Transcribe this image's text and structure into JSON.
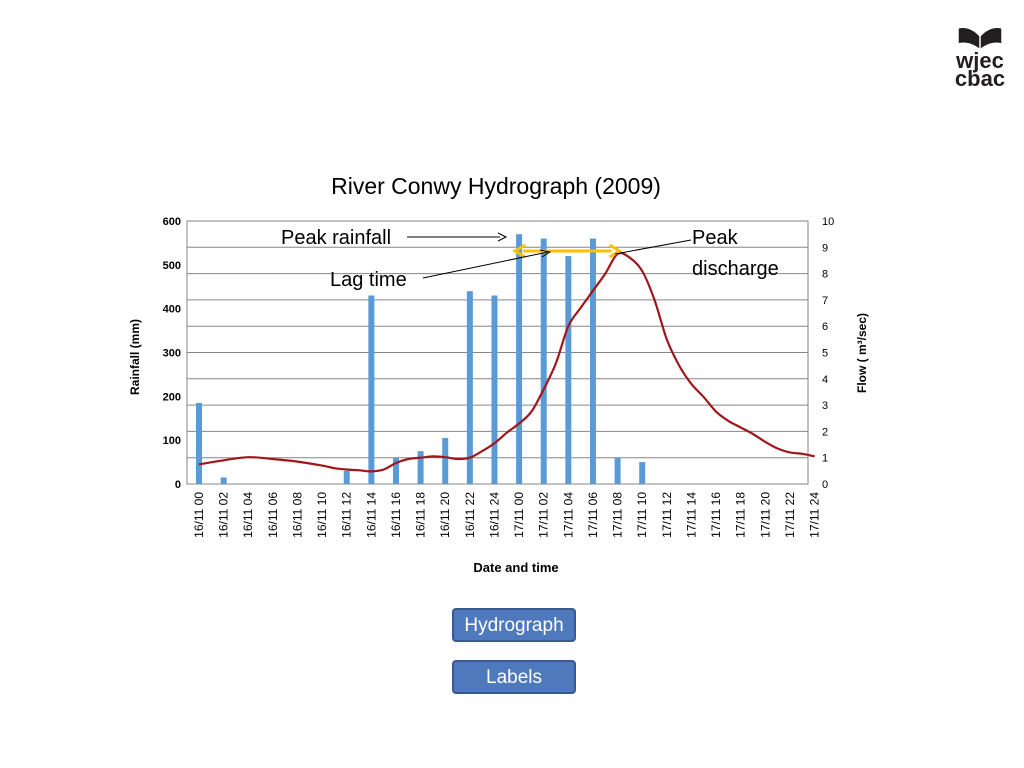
{
  "logo": {
    "line1": "wjec",
    "line2": "cbac"
  },
  "buttons": {
    "hydrograph": "Hydrograph",
    "labels": "Labels"
  },
  "colors": {
    "bars": "#5b9bd5",
    "flow_line": "#a0161b",
    "lag_arrow": "#ffc000",
    "button": "#4f79bd"
  },
  "chart_data": {
    "type": "bar+line",
    "title": "River Conwy Hydrograph (2009)",
    "xlabel": "Date and time",
    "ylabel": "Rainfall (mm)",
    "y2label": "Flow ( m³/sec)",
    "ylim": [
      0,
      600
    ],
    "y_ticks": [
      0,
      100,
      200,
      300,
      400,
      500,
      600
    ],
    "y2lim": [
      0,
      10
    ],
    "y2_ticks": [
      0,
      1,
      2,
      3,
      4,
      5,
      6,
      7,
      8,
      9,
      10
    ],
    "grid": "horizontal, on flow axis",
    "categories": [
      "16/11 00",
      "16/11 02",
      "16/11 04",
      "16/11 06",
      "16/11 08",
      "16/11 10",
      "16/11 12",
      "16/11 14",
      "16/11 16",
      "16/11 18",
      "16/11 20",
      "16/11 22",
      "16/11 24",
      "17/11 00",
      "17/11 02",
      "17/11 04",
      "17/11 06",
      "17/11 08",
      "17/11 10",
      "17/11 12",
      "17/11 14",
      "17/11 16",
      "17/11 18",
      "17/11 20",
      "17/11 22",
      "17/11 24"
    ],
    "series": [
      {
        "name": "Rainfall",
        "kind": "bar",
        "axis": "left",
        "x": [
          0,
          1,
          6,
          7,
          8,
          9,
          10,
          11,
          12,
          13,
          14,
          15,
          16,
          17,
          18
        ],
        "values": [
          185,
          15,
          30,
          430,
          60,
          75,
          105,
          440,
          430,
          570,
          560,
          520,
          560,
          60,
          50
        ]
      },
      {
        "name": "Flow",
        "kind": "line",
        "axis": "right",
        "x": [
          0,
          1,
          2,
          3,
          4,
          5,
          5.5,
          6,
          6.5,
          7,
          7.5,
          8,
          8.5,
          9,
          9.5,
          10,
          10.5,
          11,
          11.5,
          12,
          12.5,
          13,
          13.5,
          14,
          14.5,
          15,
          15.5,
          16,
          16.5,
          17,
          17.5,
          18,
          18.5,
          19,
          19.5,
          20,
          20.5,
          21,
          21.5,
          22,
          22.5,
          23,
          23.5,
          24,
          24.5,
          25
        ],
        "values": [
          0.75,
          0.9,
          1.02,
          0.95,
          0.85,
          0.7,
          0.6,
          0.55,
          0.52,
          0.48,
          0.55,
          0.8,
          0.95,
          1.0,
          1.05,
          1.02,
          0.95,
          1.0,
          1.25,
          1.55,
          1.95,
          2.3,
          2.75,
          3.6,
          4.6,
          6.0,
          6.7,
          7.35,
          8.0,
          8.75,
          8.6,
          8.1,
          7.0,
          5.5,
          4.5,
          3.8,
          3.3,
          2.75,
          2.4,
          2.15,
          1.9,
          1.6,
          1.35,
          1.2,
          1.15,
          1.05
        ]
      }
    ],
    "annotations": [
      {
        "text": "Peak rainfall",
        "points_to": "rainfall peak, 17/11 00"
      },
      {
        "text": "Lag time",
        "points_to": "gap between peak rainfall and peak discharge"
      },
      {
        "text": "Peak discharge",
        "points_to": "flow peak, 17/11 08"
      }
    ],
    "lag_arrow": {
      "from": "17/11 00",
      "to": "17/11 08"
    }
  }
}
